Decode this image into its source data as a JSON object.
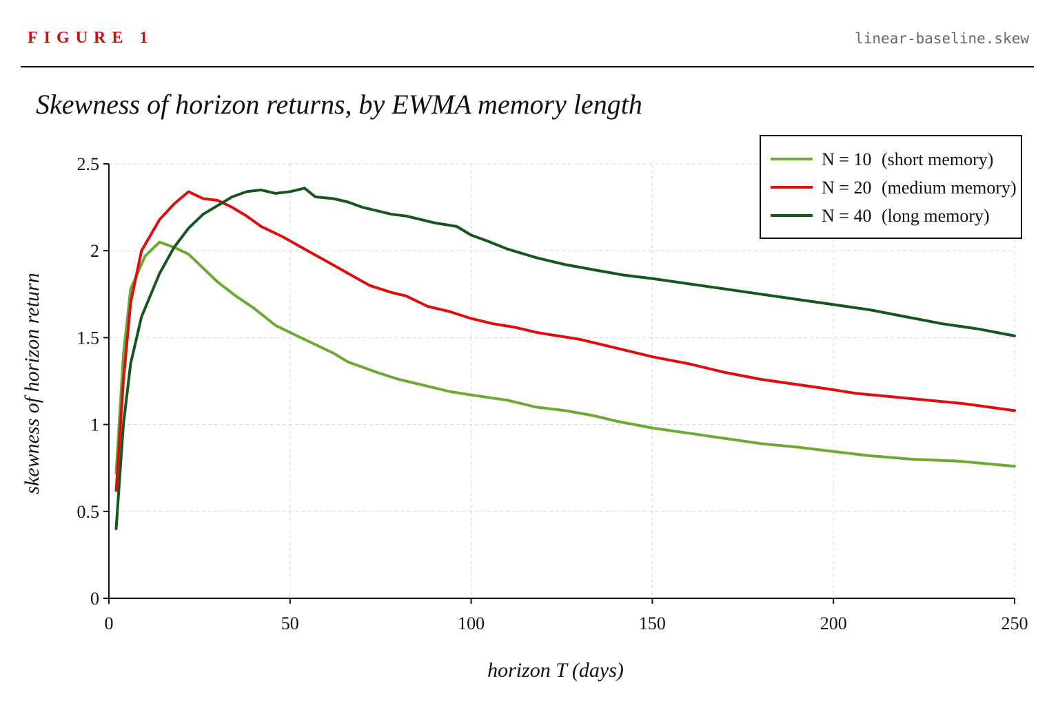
{
  "header": {
    "figure_label": "FIGURE 1",
    "file_label": "linear-baseline.skew"
  },
  "colors": {
    "accent": "#cc1111",
    "series": [
      "#6aaa35",
      "#dd0e0e",
      "#17561f"
    ],
    "grid": "#d8d8d8",
    "axis": "#111111"
  },
  "chart_data": {
    "type": "line",
    "title": "Skewness of horizon returns, by EWMA memory length",
    "xlabel": "horizon T (days)",
    "ylabel": "skewness of horizon return",
    "xlim": [
      0,
      250
    ],
    "ylim": [
      0,
      2.5
    ],
    "xticks": [
      0,
      50,
      100,
      150,
      200,
      250
    ],
    "xtick_labels": [
      "0",
      "50",
      "100",
      "150",
      "200",
      "250"
    ],
    "yticks": [
      0,
      0.5,
      1,
      1.5,
      2,
      2.5
    ],
    "ytick_labels": [
      "0",
      "0.5",
      "1",
      "1.5",
      "2",
      "2.5"
    ],
    "grid": true,
    "legend_position": "top-right",
    "series": [
      {
        "name": "N = 10 (short memory)",
        "label_n": "N = 10",
        "label_desc": "(short memory)",
        "color": "#6aaa35",
        "x": [
          2,
          4,
          6,
          10,
          14,
          18,
          22,
          26,
          30,
          35,
          40,
          46,
          52,
          58,
          62,
          66,
          70,
          74,
          80,
          86,
          94,
          100,
          110,
          118,
          126,
          134,
          140,
          150,
          160,
          170,
          180,
          190,
          198,
          210,
          222,
          234,
          250
        ],
        "y": [
          0.72,
          1.4,
          1.78,
          1.97,
          2.05,
          2.02,
          1.98,
          1.9,
          1.82,
          1.74,
          1.67,
          1.57,
          1.51,
          1.45,
          1.41,
          1.36,
          1.33,
          1.3,
          1.26,
          1.23,
          1.19,
          1.17,
          1.14,
          1.1,
          1.08,
          1.05,
          1.02,
          0.98,
          0.95,
          0.92,
          0.89,
          0.87,
          0.85,
          0.82,
          0.8,
          0.79,
          0.76
        ]
      },
      {
        "name": "N = 20 (medium memory)",
        "label_n": "N = 20",
        "label_desc": "(medium memory)",
        "color": "#dd0e0e",
        "x": [
          2,
          4,
          6,
          9,
          14,
          18,
          22,
          26,
          30,
          34,
          38,
          42,
          48,
          54,
          60,
          66,
          72,
          78,
          82,
          88,
          94,
          100,
          106,
          112,
          118,
          124,
          130,
          140,
          150,
          160,
          170,
          180,
          190,
          200,
          206,
          216,
          226,
          236,
          250
        ],
        "y": [
          0.62,
          1.25,
          1.7,
          2.0,
          2.18,
          2.27,
          2.34,
          2.3,
          2.29,
          2.25,
          2.2,
          2.14,
          2.08,
          2.01,
          1.94,
          1.87,
          1.8,
          1.76,
          1.74,
          1.68,
          1.65,
          1.61,
          1.58,
          1.56,
          1.53,
          1.51,
          1.49,
          1.44,
          1.39,
          1.35,
          1.3,
          1.26,
          1.23,
          1.2,
          1.18,
          1.16,
          1.14,
          1.12,
          1.08
        ]
      },
      {
        "name": "N = 40 (long memory)",
        "label_n": "N = 40",
        "label_desc": "(long memory)",
        "color": "#17561f",
        "x": [
          2,
          4,
          6,
          9,
          14,
          18,
          22,
          26,
          30,
          34,
          38,
          42,
          46,
          50,
          54,
          57,
          62,
          66,
          70,
          78,
          82,
          90,
          96,
          100,
          104,
          110,
          118,
          126,
          134,
          142,
          150,
          160,
          170,
          180,
          190,
          200,
          210,
          220,
          230,
          240,
          250
        ],
        "y": [
          0.4,
          1.0,
          1.35,
          1.62,
          1.87,
          2.02,
          2.13,
          2.21,
          2.26,
          2.31,
          2.34,
          2.35,
          2.33,
          2.34,
          2.36,
          2.31,
          2.3,
          2.28,
          2.25,
          2.21,
          2.2,
          2.16,
          2.14,
          2.09,
          2.06,
          2.01,
          1.96,
          1.92,
          1.89,
          1.86,
          1.84,
          1.81,
          1.78,
          1.75,
          1.72,
          1.69,
          1.66,
          1.62,
          1.58,
          1.55,
          1.51
        ]
      }
    ]
  }
}
